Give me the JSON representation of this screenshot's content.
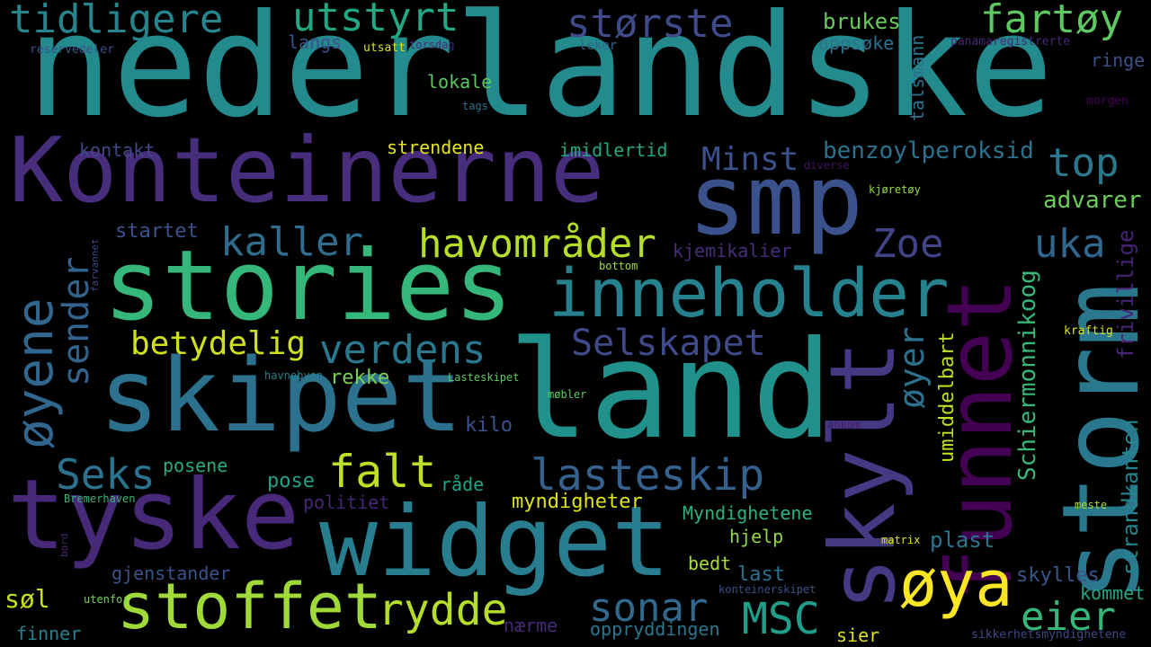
{
  "word_cloud": {
    "background": "#000000",
    "words": [
      {
        "text": "nederlandske",
        "color": "#238a8d"
      },
      {
        "text": "Konteinerne",
        "color": "#472d7b"
      },
      {
        "text": "stories",
        "color": "#35b779"
      },
      {
        "text": "land",
        "color": "#21918c"
      },
      {
        "text": "skipet",
        "color": "#2c728e"
      },
      {
        "text": "widget",
        "color": "#287d8e"
      },
      {
        "text": "tyske",
        "color": "#482878"
      },
      {
        "text": "smp",
        "color": "#3b518b"
      },
      {
        "text": "storm",
        "color": "#2a788e"
      },
      {
        "text": "funnet",
        "color": "#440154"
      },
      {
        "text": "skylt",
        "color": "#443983"
      },
      {
        "text": "inneholder",
        "color": "#26828e"
      },
      {
        "text": "stoffet",
        "color": "#a0da39"
      },
      {
        "text": "øya",
        "color": "#fde725"
      },
      {
        "text": "tidligere",
        "color": "#25858e"
      },
      {
        "text": "utstyrt",
        "color": "#22a884"
      },
      {
        "text": "største",
        "color": "#3e4a89"
      },
      {
        "text": "fartøy",
        "color": "#5ec962"
      },
      {
        "text": "havområder",
        "color": "#b5de2b"
      },
      {
        "text": "kaller",
        "color": "#2f6c8e"
      },
      {
        "text": "Zoe",
        "color": "#414487"
      },
      {
        "text": "uka",
        "color": "#31668e"
      },
      {
        "text": "top",
        "color": "#2a788e"
      },
      {
        "text": "øyene",
        "color": "#31668e"
      },
      {
        "text": "sender",
        "color": "#33638d"
      },
      {
        "text": "betydelig",
        "color": "#d0e11c"
      },
      {
        "text": "verdens",
        "color": "#2a788e"
      },
      {
        "text": "Selskapet",
        "color": "#3e4a89"
      },
      {
        "text": "falt",
        "color": "#bddf26"
      },
      {
        "text": "lasteskip",
        "color": "#34618d"
      },
      {
        "text": "Seks",
        "color": "#2c728e"
      },
      {
        "text": "sonar",
        "color": "#31688e"
      },
      {
        "text": "rydde",
        "color": "#b5de2b"
      },
      {
        "text": "MSC",
        "color": "#1f9e89"
      },
      {
        "text": "eier",
        "color": "#35b779"
      },
      {
        "text": "øyer",
        "color": "#2d708e"
      },
      {
        "text": "Minst",
        "color": "#3b518b"
      },
      {
        "text": "benzoylperoksid",
        "color": "#2c728e"
      },
      {
        "text": "advarer",
        "color": "#6ccd5a"
      },
      {
        "text": "frivillige",
        "color": "#482475"
      },
      {
        "text": "Schiermonnikoog",
        "color": "#37b878"
      },
      {
        "text": "umiddelbart",
        "color": "#c2df23"
      },
      {
        "text": "strandkanten",
        "color": "#25848e"
      },
      {
        "text": "talsmann",
        "color": "#2c728e"
      },
      {
        "text": "brukes",
        "color": "#67cc5c"
      },
      {
        "text": "oppsøke",
        "color": "#2c728e"
      },
      {
        "text": "ringe",
        "color": "#3b528b"
      },
      {
        "text": "langs",
        "color": "#3b528b"
      },
      {
        "text": "lokale",
        "color": "#5ec962"
      },
      {
        "text": "kontakt",
        "color": "#3e4a89"
      },
      {
        "text": "strendene",
        "color": "#e5e419"
      },
      {
        "text": "imidlertid",
        "color": "#22a884"
      },
      {
        "text": "startet",
        "color": "#3b528b"
      },
      {
        "text": "kjemikalier",
        "color": "#472d7b"
      },
      {
        "text": "rekke",
        "color": "#7ad151"
      },
      {
        "text": "kilo",
        "color": "#3b528b"
      },
      {
        "text": "posene",
        "color": "#27ad81"
      },
      {
        "text": "pose",
        "color": "#1fa188"
      },
      {
        "text": "råde",
        "color": "#20a486"
      },
      {
        "text": "politiet",
        "color": "#482576"
      },
      {
        "text": "myndigheter",
        "color": "#dde318"
      },
      {
        "text": "Myndighetene",
        "color": "#2db27d"
      },
      {
        "text": "hjelp",
        "color": "#8fd744"
      },
      {
        "text": "plast",
        "color": "#2a778e"
      },
      {
        "text": "bedt",
        "color": "#aadc32"
      },
      {
        "text": "last",
        "color": "#2d708e"
      },
      {
        "text": "skylles",
        "color": "#39568c"
      },
      {
        "text": "kommet",
        "color": "#22a884"
      },
      {
        "text": "gjenstander",
        "color": "#3b528b"
      },
      {
        "text": "søl",
        "color": "#c8e020"
      },
      {
        "text": "utenfor",
        "color": "#75d054"
      },
      {
        "text": "nærme",
        "color": "#482878"
      },
      {
        "text": "oppryddingen",
        "color": "#2a788e"
      },
      {
        "text": "finner",
        "color": "#26818e"
      },
      {
        "text": "sier",
        "color": "#dde318"
      },
      {
        "text": "sikkerhetsmyndighetene",
        "color": "#3e4a89"
      },
      {
        "text": "reservedeler",
        "color": "#3b528b"
      },
      {
        "text": "utsatt",
        "color": "#d8e219"
      },
      {
        "text": "torsdag",
        "color": "#482878"
      },
      {
        "text": "leker",
        "color": "#33638d"
      },
      {
        "text": "panamaregistrerte",
        "color": "#482878"
      },
      {
        "text": "tags",
        "color": "#2c728e"
      },
      {
        "text": "morgen",
        "color": "#440154"
      },
      {
        "text": "diverse",
        "color": "#471063"
      },
      {
        "text": "kjøretøy",
        "color": "#95d840"
      },
      {
        "text": "bottom",
        "color": "#a2da37"
      },
      {
        "text": "farvannet",
        "color": "#3e4a89"
      },
      {
        "text": "havnebyen",
        "color": "#25848e"
      },
      {
        "text": "Lasteskipet",
        "color": "#5ec962"
      },
      {
        "text": "møbler",
        "color": "#5ec962"
      },
      {
        "text": "kraftig",
        "color": "#d8e219"
      },
      {
        "text": "ankom",
        "color": "#481a6c"
      },
      {
        "text": "Bremerhaven",
        "color": "#35b779"
      },
      {
        "text": "bord",
        "color": "#482878"
      },
      {
        "text": "meste",
        "color": "#a5db36"
      },
      {
        "text": "matrix",
        "color": "#dde318"
      },
      {
        "text": "konteinerskipet",
        "color": "#3b528b"
      }
    ]
  }
}
